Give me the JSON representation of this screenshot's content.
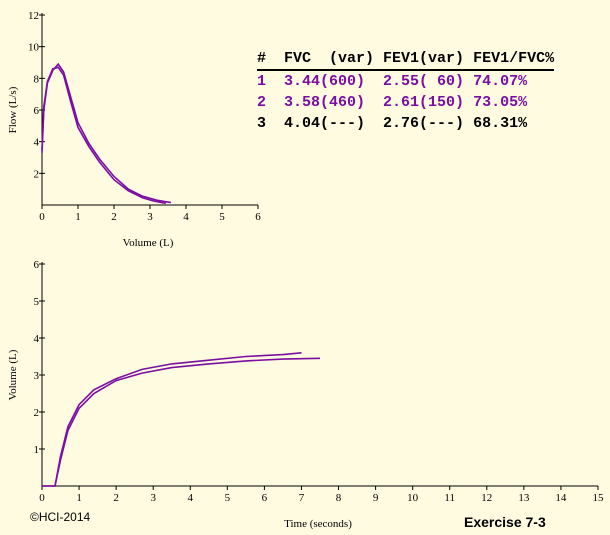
{
  "colors": {
    "background": "#fffbe1",
    "trial_colors": [
      "#7b0ea0",
      "#7b0ea0",
      "#000000"
    ]
  },
  "table": {
    "header": [
      "#",
      "FVC  (var)",
      "FEV1(var)",
      "FEV1/FVC%"
    ],
    "rows": [
      [
        "1",
        "3.44(600)",
        "2.55( 60)",
        "74.07%"
      ],
      [
        "2",
        "3.58(460)",
        "2.61(150)",
        "73.05%"
      ],
      [
        "3",
        "4.04(---)",
        "2.76(---)",
        "68.31%"
      ]
    ]
  },
  "footer": {
    "copyright": "©HCI-2014",
    "exercise": "Exercise 7-3"
  },
  "chart_data": [
    {
      "type": "line",
      "title": "",
      "xlabel": "Volume (L)",
      "ylabel": "Flow (L/s)",
      "xlim": [
        0,
        6
      ],
      "ylim": [
        0,
        12
      ],
      "x_ticks": [
        "0",
        "1",
        "2",
        "3",
        "4",
        "5",
        "6"
      ],
      "y_ticks": [
        "2",
        "4",
        "6",
        "8",
        "10",
        "12"
      ],
      "series": [
        {
          "x": [
            0,
            0.05,
            0.15,
            0.3,
            0.45,
            0.6,
            0.8,
            1.0,
            1.3,
            1.6,
            2.0,
            2.4,
            2.8,
            3.1,
            3.44
          ],
          "y": [
            3.5,
            6.2,
            7.8,
            8.6,
            8.7,
            8.2,
            6.5,
            4.9,
            3.7,
            2.7,
            1.6,
            0.9,
            0.45,
            0.25,
            0.1
          ]
        },
        {
          "x": [
            0,
            0.05,
            0.15,
            0.3,
            0.45,
            0.6,
            0.8,
            1.0,
            1.3,
            1.6,
            2.0,
            2.4,
            2.8,
            3.2,
            3.58
          ],
          "y": [
            3.3,
            6.0,
            7.7,
            8.5,
            8.9,
            8.4,
            6.8,
            5.2,
            3.9,
            2.9,
            1.8,
            1.0,
            0.55,
            0.3,
            0.15
          ]
        }
      ]
    },
    {
      "type": "line",
      "title": "",
      "xlabel": "Time (seconds)",
      "ylabel": "Volume (L)",
      "xlim": [
        0,
        15
      ],
      "ylim": [
        0,
        6
      ],
      "x_ticks": [
        "0",
        "1",
        "2",
        "3",
        "4",
        "5",
        "6",
        "7",
        "8",
        "9",
        "10",
        "11",
        "12",
        "13",
        "14",
        "15"
      ],
      "y_ticks": [
        "1",
        "2",
        "3",
        "4",
        "5",
        "6"
      ],
      "series": [
        {
          "x": [
            0,
            0.35,
            0.5,
            0.7,
            1.0,
            1.4,
            2.0,
            2.7,
            3.5,
            4.5,
            5.5,
            6.5,
            7.0
          ],
          "y": [
            0,
            0,
            0.8,
            1.6,
            2.2,
            2.6,
            2.9,
            3.15,
            3.3,
            3.4,
            3.5,
            3.55,
            3.6
          ]
        },
        {
          "x": [
            0,
            0.35,
            0.5,
            0.7,
            1.0,
            1.4,
            2.0,
            2.7,
            3.5,
            4.5,
            5.5,
            6.5,
            7.5
          ],
          "y": [
            0,
            0,
            0.7,
            1.5,
            2.1,
            2.5,
            2.85,
            3.05,
            3.2,
            3.3,
            3.38,
            3.43,
            3.45
          ]
        }
      ]
    }
  ]
}
